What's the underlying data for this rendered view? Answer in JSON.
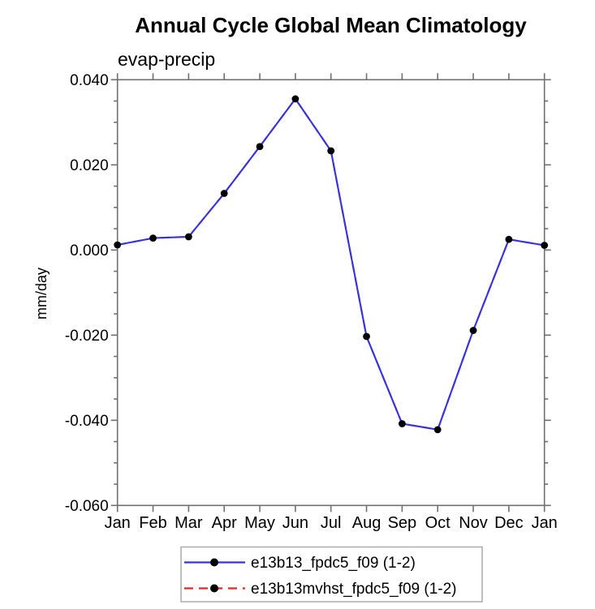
{
  "title": "Annual Cycle Global Mean Climatology",
  "subtitle": "evap-precip",
  "ylabel": "mm/day",
  "colors": {
    "series1_line": "#3333e0",
    "series2_line": "#ee2222",
    "marker": "#000000",
    "axis": "#707070",
    "legend_border": "#aaaaaa",
    "text": "#000000",
    "background": "#ffffff"
  },
  "chart_data": {
    "type": "line",
    "x_categories": [
      "Jan",
      "Feb",
      "Mar",
      "Apr",
      "May",
      "Jun",
      "Jul",
      "Aug",
      "Sep",
      "Oct",
      "Nov",
      "Dec",
      "Jan"
    ],
    "series": [
      {
        "name": "e13b13_fpdc5_f09 (1-2)",
        "line_style": "solid",
        "marker": "filled-circle",
        "values": [
          0.0012,
          0.0028,
          0.0031,
          0.0133,
          0.0243,
          0.0355,
          0.0233,
          -0.0203,
          -0.0408,
          -0.0422,
          -0.0189,
          0.0025,
          0.0011
        ]
      },
      {
        "name": "e13b13mvhst_fpdc5_f09 (1-2)",
        "line_style": "dashed",
        "marker": "filled-circle",
        "values": [
          0.0012,
          0.0028,
          0.0031,
          0.0133,
          0.0243,
          0.0355,
          0.0233,
          -0.0203,
          -0.0408,
          -0.0422,
          -0.0189,
          0.0025,
          0.0011
        ]
      }
    ],
    "title": "Annual Cycle Global Mean Climatology",
    "subtitle": "evap-precip",
    "xlabel": "",
    "ylabel": "mm/day",
    "ylim": [
      -0.06,
      0.04
    ],
    "ytick_interval": 0.02,
    "ytick_labels": [
      "0.040",
      "0.020",
      "0.000",
      "-0.020",
      "-0.040",
      "-0.060"
    ],
    "y_minor_tick_interval": 0.005,
    "grid": false,
    "legend_position": "bottom-center",
    "tick_direction": "outward"
  }
}
